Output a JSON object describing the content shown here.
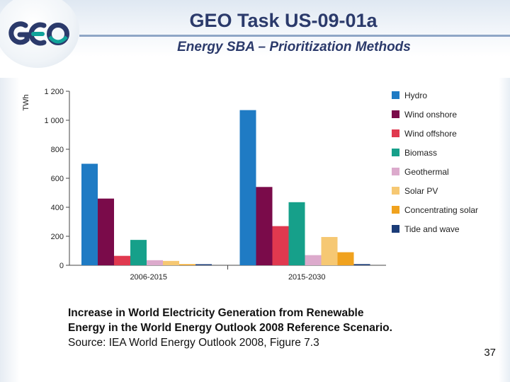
{
  "header": {
    "title": "GEO Task US-09-01a",
    "subtitle": "Energy SBA – Prioritization Methods"
  },
  "logo": {
    "icon": "geo-logo-icon",
    "colors": {
      "navy": "#2b3a6b",
      "teal": "#10a39a"
    }
  },
  "chart_data": {
    "type": "bar",
    "title": "",
    "xlabel": "",
    "ylabel": "TWh",
    "ylim": [
      0,
      1200
    ],
    "yticks": [
      0,
      200,
      400,
      600,
      800,
      1000,
      1200
    ],
    "ytick_labels": [
      "0",
      "200",
      "400",
      "600",
      "800",
      "1 000",
      "1 200"
    ],
    "categories": [
      "2006-2015",
      "2015-2030"
    ],
    "series": [
      {
        "name": "Hydro",
        "color": "#1f7bc4",
        "values": [
          700,
          1070
        ]
      },
      {
        "name": "Wind onshore",
        "color": "#7a0b4a",
        "values": [
          460,
          540
        ]
      },
      {
        "name": "Wind offshore",
        "color": "#e0394f",
        "values": [
          65,
          270
        ]
      },
      {
        "name": "Biomass",
        "color": "#16a08a",
        "values": [
          175,
          435
        ]
      },
      {
        "name": "Geothermal",
        "color": "#dcaacc",
        "values": [
          35,
          70
        ]
      },
      {
        "name": "Solar PV",
        "color": "#f6c873",
        "values": [
          30,
          195
        ]
      },
      {
        "name": "Concentrating solar",
        "color": "#f0a21e",
        "values": [
          5,
          90
        ]
      },
      {
        "name": "Tide and wave",
        "color": "#1b3c78",
        "values": [
          2,
          8
        ]
      }
    ],
    "legend_position": "right"
  },
  "caption": {
    "line1": "Increase in World Electricity Generation from Renewable",
    "line2": "Energy in the World Energy Outlook 2008 Reference Scenario.",
    "line3": "Source: IEA World Energy Outlook 2008, Figure 7.3"
  },
  "page_number": "37"
}
